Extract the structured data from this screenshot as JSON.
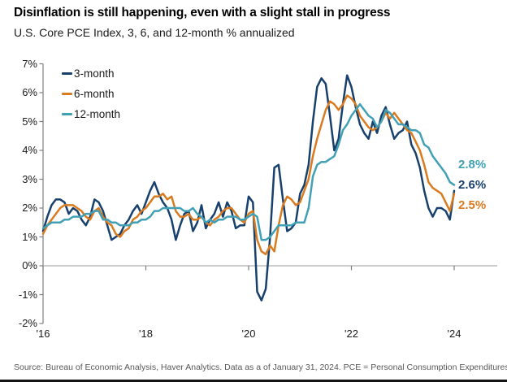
{
  "header": {
    "title": "Disinflation is still happening, even with a slight stall in progress",
    "subtitle": "U.S. Core PCE Index, 3, 6, and 12-month % annualized"
  },
  "source_note": "Source: Bureau of Economic Analysis, Haver Analytics. Data as a of January 31, 2024. PCE = Personal Consumption Expenditures.",
  "chart_data": {
    "type": "line",
    "title": "Disinflation is still happening, even with a slight stall in progress",
    "subtitle": "U.S. Core PCE Index, 3, 6, and 12-month % annualized",
    "x_unit": "month",
    "x_start": "2016-01",
    "x_end": "2024-01",
    "months_total": 97,
    "ylim": [
      -2,
      7
    ],
    "grid": "zero-line-only",
    "legend_position": "top-left",
    "axis_color": "#7f7f7f",
    "yticks": [
      {
        "label": "7%",
        "value": 7
      },
      {
        "label": "6%",
        "value": 6
      },
      {
        "label": "5%",
        "value": 5
      },
      {
        "label": "4%",
        "value": 4
      },
      {
        "label": "3%",
        "value": 3
      },
      {
        "label": "2%",
        "value": 2
      },
      {
        "label": "1%",
        "value": 1
      },
      {
        "label": "0%",
        "value": 0
      },
      {
        "label": "-1%",
        "value": -1
      },
      {
        "label": "-2%",
        "value": -2
      }
    ],
    "xticks": [
      {
        "label": "'16",
        "month_index": 0
      },
      {
        "label": "'18",
        "month_index": 24
      },
      {
        "label": "'20",
        "month_index": 48
      },
      {
        "label": "'22",
        "month_index": 72
      },
      {
        "label": "'24",
        "month_index": 96
      }
    ],
    "series": [
      {
        "name": "3-month",
        "color": "#17406d",
        "end_label": "2.6%",
        "values": [
          1.2,
          1.7,
          2.1,
          2.3,
          2.3,
          2.2,
          1.8,
          2.0,
          1.9,
          1.6,
          1.4,
          1.7,
          2.3,
          2.2,
          1.9,
          1.4,
          0.9,
          1.0,
          1.1,
          1.4,
          1.6,
          1.9,
          2.1,
          1.8,
          2.2,
          2.6,
          2.9,
          2.5,
          2.2,
          2.0,
          1.6,
          0.9,
          1.4,
          1.8,
          1.9,
          1.2,
          1.5,
          2.1,
          1.3,
          1.6,
          1.8,
          2.2,
          1.7,
          2.2,
          1.9,
          1.3,
          1.4,
          1.4,
          2.4,
          2.2,
          -0.9,
          -1.2,
          -0.8,
          1.0,
          3.4,
          3.5,
          2.3,
          1.2,
          1.3,
          1.5,
          2.5,
          2.8,
          3.5,
          5.0,
          6.2,
          6.5,
          6.3,
          5.2,
          4.0,
          4.4,
          5.6,
          6.6,
          6.2,
          5.5,
          4.9,
          4.6,
          4.4,
          5.0,
          4.6,
          5.2,
          5.5,
          4.9,
          4.4,
          4.6,
          4.7,
          5.0,
          4.2,
          3.9,
          3.4,
          2.6,
          2.0,
          1.7,
          2.0,
          2.0,
          1.9,
          1.6,
          2.6
        ]
      },
      {
        "name": "6-month",
        "color": "#d97b20",
        "end_label": "2.5%",
        "values": [
          1.1,
          1.4,
          1.6,
          1.8,
          2.0,
          2.1,
          2.1,
          2.1,
          2.0,
          1.9,
          1.7,
          1.6,
          1.9,
          2.0,
          1.7,
          1.5,
          1.4,
          1.1,
          1.0,
          1.2,
          1.3,
          1.6,
          1.7,
          1.9,
          2.0,
          2.2,
          2.4,
          2.4,
          2.5,
          2.3,
          2.4,
          1.9,
          1.7,
          1.7,
          1.8,
          1.6,
          1.6,
          1.7,
          1.5,
          1.4,
          1.6,
          1.7,
          1.9,
          2.0,
          2.0,
          1.8,
          1.6,
          1.5,
          1.8,
          1.9,
          0.9,
          0.5,
          0.4,
          0.7,
          0.5,
          1.4,
          2.1,
          2.4,
          2.3,
          2.1,
          2.2,
          2.6,
          3.0,
          3.8,
          4.4,
          4.9,
          5.4,
          5.7,
          5.6,
          5.4,
          5.6,
          5.9,
          5.8,
          5.6,
          5.2,
          5.0,
          4.8,
          4.7,
          4.8,
          5.0,
          5.3,
          5.1,
          5.3,
          5.1,
          4.9,
          4.7,
          4.6,
          4.3,
          4.0,
          3.5,
          2.9,
          2.7,
          2.6,
          2.5,
          2.2,
          1.9,
          2.5
        ]
      },
      {
        "name": "12-month",
        "color": "#41a0b5",
        "end_label": "2.8%",
        "values": [
          1.3,
          1.4,
          1.5,
          1.5,
          1.5,
          1.6,
          1.6,
          1.7,
          1.7,
          1.7,
          1.8,
          1.8,
          1.9,
          1.9,
          1.6,
          1.6,
          1.5,
          1.5,
          1.4,
          1.4,
          1.4,
          1.5,
          1.5,
          1.6,
          1.6,
          1.7,
          1.9,
          1.9,
          2.0,
          2.0,
          2.0,
          2.0,
          2.0,
          1.9,
          1.9,
          2.0,
          1.8,
          1.7,
          1.5,
          1.6,
          1.5,
          1.6,
          1.6,
          1.7,
          1.7,
          1.7,
          1.6,
          1.6,
          1.7,
          1.8,
          1.7,
          0.9,
          0.9,
          1.0,
          1.2,
          1.4,
          1.4,
          1.4,
          1.4,
          1.5,
          1.5,
          1.5,
          2.0,
          3.1,
          3.5,
          3.6,
          3.6,
          3.7,
          3.8,
          4.2,
          4.7,
          4.9,
          5.2,
          5.4,
          5.6,
          5.4,
          5.2,
          5.1,
          4.8,
          5.0,
          5.4,
          5.3,
          5.1,
          4.9,
          4.9,
          4.8,
          4.7,
          4.7,
          4.6,
          4.2,
          4.1,
          3.8,
          3.6,
          3.4,
          3.2,
          2.9,
          2.8
        ]
      }
    ]
  }
}
